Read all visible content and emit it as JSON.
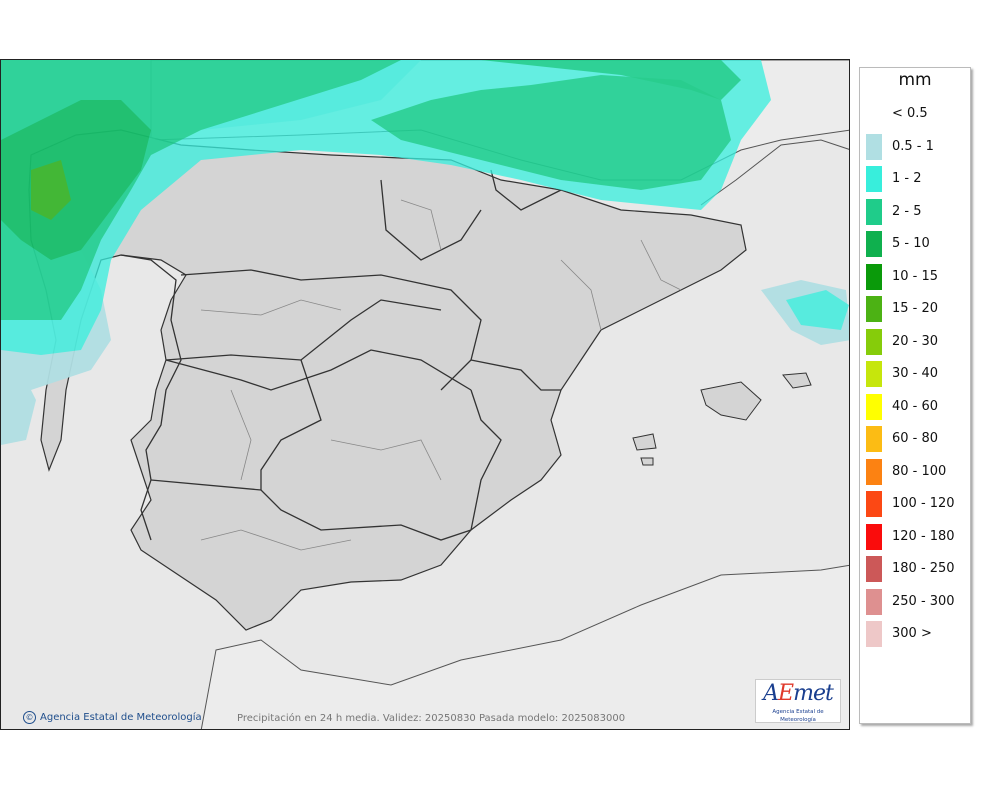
{
  "map": {
    "credit": "Agencia Estatal de Meteorología",
    "caption": "Precipitación en 24 h media. Validez: 20250830 Pasada modelo: 2025083000",
    "logo": {
      "word_a": "A",
      "word_e": "E",
      "word_rest": "met",
      "subtitle": "Agencia Estatal de Meteorología"
    }
  },
  "legend": {
    "unit": "mm",
    "items": [
      {
        "label": "< 0.5",
        "color": "#ffffff"
      },
      {
        "label": "0.5 - 1",
        "color": "#b0dfe3"
      },
      {
        "label": "1 - 2",
        "color": "#38eedc"
      },
      {
        "label": "2 - 5",
        "color": "#1fcc8a"
      },
      {
        "label": "5 - 10",
        "color": "#0fb04e"
      },
      {
        "label": "10 - 15",
        "color": "#0a9a0a"
      },
      {
        "label": "15 - 20",
        "color": "#4cb214"
      },
      {
        "label": "20 - 30",
        "color": "#86cc0a"
      },
      {
        "label": "30 - 40",
        "color": "#c6e60c"
      },
      {
        "label": "40 - 60",
        "color": "#ffff00"
      },
      {
        "label": "60 - 80",
        "color": "#fcbc14"
      },
      {
        "label": "80 - 100",
        "color": "#fc8212"
      },
      {
        "label": "100 - 120",
        "color": "#fc4814"
      },
      {
        "label": "120 - 180",
        "color": "#fa0c0c"
      },
      {
        "label": "180 - 250",
        "color": "#cc5858"
      },
      {
        "label": "250 - 300",
        "color": "#de9090"
      },
      {
        "label": "300 >",
        "color": "#eec8c8"
      }
    ]
  }
}
